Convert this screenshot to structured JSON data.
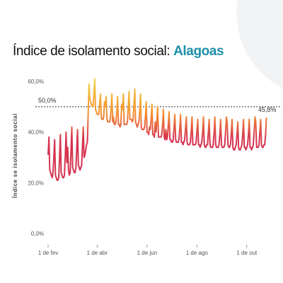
{
  "title": {
    "prefix": "Índice de isolamento social:",
    "location": "Alagoas"
  },
  "colors": {
    "low": "#d6334f",
    "mid": "#f5922f",
    "high": "#f2d44a",
    "reference_line": "#333333",
    "location": "#1e8fa8"
  },
  "chart_data": {
    "type": "line",
    "title": "Índice de isolamento social: Alagoas",
    "ylabel": "Índice se isolamento social",
    "xlabel": "",
    "y_unit": "%",
    "ylim": [
      0,
      60
    ],
    "xlim": [
      "2020-02-01",
      "2020-10-28"
    ],
    "yticks": [
      {
        "value": 0,
        "label": "0,0%"
      },
      {
        "value": 20,
        "label": "20,0%"
      },
      {
        "value": 40,
        "label": "40,0%"
      },
      {
        "value": 60,
        "label": "60,0%"
      }
    ],
    "xticks": [
      {
        "date": "2020-02-01",
        "label": "1 de fev"
      },
      {
        "date": "2020-04-01",
        "label": "1 de abr"
      },
      {
        "date": "2020-06-01",
        "label": "1 de jun"
      },
      {
        "date": "2020-08-01",
        "label": "1 de ago"
      },
      {
        "date": "2020-10-01",
        "label": "1 de out"
      }
    ],
    "reference_line": {
      "value": 50,
      "label": "50,0%"
    },
    "end_label": "45,8%",
    "grid": false,
    "series": [
      {
        "values": [
          [
            "2020-02-01",
            31.0
          ],
          [
            "2020-02-02",
            38.0
          ],
          [
            "2020-02-03",
            25.0
          ],
          [
            "2020-02-04",
            24.0
          ],
          [
            "2020-02-05",
            23.0
          ],
          [
            "2020-02-06",
            22.0
          ],
          [
            "2020-02-07",
            24.0
          ],
          [
            "2020-02-08",
            30.0
          ],
          [
            "2020-02-09",
            37.0
          ],
          [
            "2020-02-10",
            23.0
          ],
          [
            "2020-02-11",
            22.0
          ],
          [
            "2020-02-12",
            21.0
          ],
          [
            "2020-02-13",
            21.0
          ],
          [
            "2020-02-14",
            22.0
          ],
          [
            "2020-02-15",
            30.0
          ],
          [
            "2020-02-16",
            39.0
          ],
          [
            "2020-02-17",
            24.0
          ],
          [
            "2020-02-18",
            23.0
          ],
          [
            "2020-02-19",
            22.0
          ],
          [
            "2020-02-20",
            22.0
          ],
          [
            "2020-02-21",
            23.0
          ],
          [
            "2020-02-22",
            31.0
          ],
          [
            "2020-02-23",
            40.0
          ],
          [
            "2020-02-24",
            28.0
          ],
          [
            "2020-02-25",
            34.0
          ],
          [
            "2020-02-26",
            25.0
          ],
          [
            "2020-02-27",
            23.0
          ],
          [
            "2020-02-28",
            24.0
          ],
          [
            "2020-02-29",
            33.0
          ],
          [
            "2020-03-01",
            42.0
          ],
          [
            "2020-03-02",
            26.0
          ],
          [
            "2020-03-03",
            25.0
          ],
          [
            "2020-03-04",
            24.0
          ],
          [
            "2020-03-05",
            24.0
          ],
          [
            "2020-03-06",
            26.0
          ],
          [
            "2020-03-07",
            33.0
          ],
          [
            "2020-03-08",
            41.0
          ],
          [
            "2020-03-09",
            27.0
          ],
          [
            "2020-03-10",
            26.0
          ],
          [
            "2020-03-11",
            25.0
          ],
          [
            "2020-03-12",
            26.0
          ],
          [
            "2020-03-13",
            27.0
          ],
          [
            "2020-03-14",
            34.0
          ],
          [
            "2020-03-15",
            42.0
          ],
          [
            "2020-03-16",
            30.0
          ],
          [
            "2020-03-17",
            31.0
          ],
          [
            "2020-03-18",
            33.0
          ],
          [
            "2020-03-19",
            35.0
          ],
          [
            "2020-03-20",
            36.0
          ],
          [
            "2020-03-21",
            47.0
          ],
          [
            "2020-03-22",
            59.0
          ],
          [
            "2020-03-23",
            53.0
          ],
          [
            "2020-03-24",
            52.0
          ],
          [
            "2020-03-25",
            51.0
          ],
          [
            "2020-03-26",
            50.0
          ],
          [
            "2020-03-27",
            50.0
          ],
          [
            "2020-03-28",
            55.0
          ],
          [
            "2020-03-29",
            61.0
          ],
          [
            "2020-03-30",
            49.0
          ],
          [
            "2020-03-31",
            48.0
          ],
          [
            "2020-04-01",
            47.0
          ],
          [
            "2020-04-02",
            47.0
          ],
          [
            "2020-04-03",
            47.0
          ],
          [
            "2020-04-04",
            51.0
          ],
          [
            "2020-04-05",
            55.0
          ],
          [
            "2020-04-06",
            46.0
          ],
          [
            "2020-04-07",
            45.0
          ],
          [
            "2020-04-08",
            45.0
          ],
          [
            "2020-04-09",
            46.0
          ],
          [
            "2020-04-10",
            52.0
          ],
          [
            "2020-04-11",
            50.0
          ],
          [
            "2020-04-12",
            54.0
          ],
          [
            "2020-04-13",
            45.0
          ],
          [
            "2020-04-14",
            44.0
          ],
          [
            "2020-04-15",
            44.0
          ],
          [
            "2020-04-16",
            44.0
          ],
          [
            "2020-04-17",
            45.0
          ],
          [
            "2020-04-18",
            49.0
          ],
          [
            "2020-04-19",
            55.0
          ],
          [
            "2020-04-20",
            44.0
          ],
          [
            "2020-04-21",
            46.0
          ],
          [
            "2020-04-22",
            43.0
          ],
          [
            "2020-04-23",
            43.0
          ],
          [
            "2020-04-24",
            44.0
          ],
          [
            "2020-04-25",
            48.0
          ],
          [
            "2020-04-26",
            54.0
          ],
          [
            "2020-04-27",
            43.0
          ],
          [
            "2020-04-28",
            43.0
          ],
          [
            "2020-04-29",
            42.0
          ],
          [
            "2020-04-30",
            43.0
          ],
          [
            "2020-05-01",
            51.0
          ],
          [
            "2020-05-02",
            49.0
          ],
          [
            "2020-05-03",
            55.0
          ],
          [
            "2020-05-04",
            43.0
          ],
          [
            "2020-05-05",
            43.0
          ],
          [
            "2020-05-06",
            43.0
          ],
          [
            "2020-05-07",
            43.0
          ],
          [
            "2020-05-08",
            44.0
          ],
          [
            "2020-05-09",
            50.0
          ],
          [
            "2020-05-10",
            56.0
          ],
          [
            "2020-05-11",
            45.0
          ],
          [
            "2020-05-12",
            45.0
          ],
          [
            "2020-05-13",
            45.0
          ],
          [
            "2020-05-14",
            44.0
          ],
          [
            "2020-05-15",
            45.0
          ],
          [
            "2020-05-16",
            51.0
          ],
          [
            "2020-05-17",
            57.0
          ],
          [
            "2020-05-18",
            44.0
          ],
          [
            "2020-05-19",
            43.0
          ],
          [
            "2020-05-20",
            42.0
          ],
          [
            "2020-05-21",
            43.0
          ],
          [
            "2020-05-22",
            44.0
          ],
          [
            "2020-05-23",
            48.0
          ],
          [
            "2020-05-24",
            55.0
          ],
          [
            "2020-05-25",
            42.0
          ],
          [
            "2020-05-26",
            41.0
          ],
          [
            "2020-05-27",
            41.0
          ],
          [
            "2020-05-28",
            41.0
          ],
          [
            "2020-05-29",
            42.0
          ],
          [
            "2020-05-30",
            46.0
          ],
          [
            "2020-05-31",
            52.0
          ],
          [
            "2020-06-01",
            40.0
          ],
          [
            "2020-06-02",
            40.0
          ],
          [
            "2020-06-03",
            39.0
          ],
          [
            "2020-06-04",
            42.0
          ],
          [
            "2020-06-05",
            41.0
          ],
          [
            "2020-06-06",
            45.0
          ],
          [
            "2020-06-07",
            51.0
          ],
          [
            "2020-06-08",
            39.0
          ],
          [
            "2020-06-09",
            39.0
          ],
          [
            "2020-06-10",
            38.0
          ],
          [
            "2020-06-11",
            44.0
          ],
          [
            "2020-06-12",
            40.0
          ],
          [
            "2020-06-13",
            44.0
          ],
          [
            "2020-06-14",
            50.0
          ],
          [
            "2020-06-15",
            38.0
          ],
          [
            "2020-06-16",
            38.0
          ],
          [
            "2020-06-17",
            38.0
          ],
          [
            "2020-06-18",
            38.0
          ],
          [
            "2020-06-19",
            39.0
          ],
          [
            "2020-06-20",
            43.0
          ],
          [
            "2020-06-21",
            49.0
          ],
          [
            "2020-06-22",
            38.0
          ],
          [
            "2020-06-23",
            37.0
          ],
          [
            "2020-06-24",
            41.0
          ],
          [
            "2020-06-25",
            37.0
          ],
          [
            "2020-06-26",
            38.0
          ],
          [
            "2020-06-27",
            43.0
          ],
          [
            "2020-06-28",
            48.0
          ],
          [
            "2020-06-29",
            37.0
          ],
          [
            "2020-06-30",
            37.0
          ],
          [
            "2020-07-01",
            36.0
          ],
          [
            "2020-07-02",
            36.0
          ],
          [
            "2020-07-03",
            37.0
          ],
          [
            "2020-07-04",
            42.0
          ],
          [
            "2020-07-05",
            47.0
          ],
          [
            "2020-07-06",
            37.0
          ],
          [
            "2020-07-07",
            36.0
          ],
          [
            "2020-07-08",
            36.0
          ],
          [
            "2020-07-09",
            36.0
          ],
          [
            "2020-07-10",
            37.0
          ],
          [
            "2020-07-11",
            41.0
          ],
          [
            "2020-07-12",
            47.0
          ],
          [
            "2020-07-13",
            36.0
          ],
          [
            "2020-07-14",
            36.0
          ],
          [
            "2020-07-15",
            35.0
          ],
          [
            "2020-07-16",
            36.0
          ],
          [
            "2020-07-17",
            37.0
          ],
          [
            "2020-07-18",
            41.0
          ],
          [
            "2020-07-19",
            46.0
          ],
          [
            "2020-07-20",
            36.0
          ],
          [
            "2020-07-21",
            35.0
          ],
          [
            "2020-07-22",
            35.0
          ],
          [
            "2020-07-23",
            35.0
          ],
          [
            "2020-07-24",
            36.0
          ],
          [
            "2020-07-25",
            40.0
          ],
          [
            "2020-07-26",
            46.0
          ],
          [
            "2020-07-27",
            35.0
          ],
          [
            "2020-07-28",
            35.0
          ],
          [
            "2020-07-29",
            35.0
          ],
          [
            "2020-07-30",
            35.0
          ],
          [
            "2020-07-31",
            36.0
          ],
          [
            "2020-08-01",
            40.0
          ],
          [
            "2020-08-02",
            45.0
          ],
          [
            "2020-08-03",
            35.0
          ],
          [
            "2020-08-04",
            35.0
          ],
          [
            "2020-08-05",
            34.0
          ],
          [
            "2020-08-06",
            35.0
          ],
          [
            "2020-08-07",
            36.0
          ],
          [
            "2020-08-08",
            40.0
          ],
          [
            "2020-08-09",
            46.0
          ],
          [
            "2020-08-10",
            35.0
          ],
          [
            "2020-08-11",
            34.0
          ],
          [
            "2020-08-12",
            34.0
          ],
          [
            "2020-08-13",
            35.0
          ],
          [
            "2020-08-14",
            35.0
          ],
          [
            "2020-08-15",
            40.0
          ],
          [
            "2020-08-16",
            45.0
          ],
          [
            "2020-08-17",
            35.0
          ],
          [
            "2020-08-18",
            34.0
          ],
          [
            "2020-08-19",
            34.0
          ],
          [
            "2020-08-20",
            34.0
          ],
          [
            "2020-08-21",
            35.0
          ],
          [
            "2020-08-22",
            40.0
          ],
          [
            "2020-08-23",
            46.0
          ],
          [
            "2020-08-24",
            35.0
          ],
          [
            "2020-08-25",
            34.0
          ],
          [
            "2020-08-26",
            34.0
          ],
          [
            "2020-08-27",
            34.0
          ],
          [
            "2020-08-28",
            35.0
          ],
          [
            "2020-08-29",
            39.0
          ],
          [
            "2020-08-30",
            45.0
          ],
          [
            "2020-08-31",
            35.0
          ],
          [
            "2020-09-01",
            34.0
          ],
          [
            "2020-09-02",
            34.0
          ],
          [
            "2020-09-03",
            34.0
          ],
          [
            "2020-09-04",
            35.0
          ],
          [
            "2020-09-05",
            40.0
          ],
          [
            "2020-09-06",
            46.0
          ],
          [
            "2020-09-07",
            44.0
          ],
          [
            "2020-09-08",
            35.0
          ],
          [
            "2020-09-09",
            34.0
          ],
          [
            "2020-09-10",
            34.0
          ],
          [
            "2020-09-11",
            35.0
          ],
          [
            "2020-09-12",
            39.0
          ],
          [
            "2020-09-13",
            45.0
          ],
          [
            "2020-09-14",
            34.0
          ],
          [
            "2020-09-15",
            33.0
          ],
          [
            "2020-09-16",
            33.0
          ],
          [
            "2020-09-17",
            34.0
          ],
          [
            "2020-09-18",
            35.0
          ],
          [
            "2020-09-19",
            39.0
          ],
          [
            "2020-09-20",
            44.0
          ],
          [
            "2020-09-21",
            34.0
          ],
          [
            "2020-09-22",
            33.0
          ],
          [
            "2020-09-23",
            33.0
          ],
          [
            "2020-09-24",
            34.0
          ],
          [
            "2020-09-25",
            35.0
          ],
          [
            "2020-09-26",
            39.0
          ],
          [
            "2020-09-27",
            45.0
          ],
          [
            "2020-09-28",
            34.0
          ],
          [
            "2020-09-29",
            34.0
          ],
          [
            "2020-09-30",
            33.0
          ],
          [
            "2020-10-01",
            34.0
          ],
          [
            "2020-10-02",
            35.0
          ],
          [
            "2020-10-03",
            39.0
          ],
          [
            "2020-10-04",
            45.0
          ],
          [
            "2020-10-05",
            34.0
          ],
          [
            "2020-10-06",
            34.0
          ],
          [
            "2020-10-07",
            33.0
          ],
          [
            "2020-10-08",
            34.0
          ],
          [
            "2020-10-09",
            35.0
          ],
          [
            "2020-10-10",
            40.0
          ],
          [
            "2020-10-11",
            46.0
          ],
          [
            "2020-10-12",
            44.0
          ],
          [
            "2020-10-13",
            34.0
          ],
          [
            "2020-10-14",
            34.0
          ],
          [
            "2020-10-15",
            34.0
          ],
          [
            "2020-10-16",
            35.0
          ],
          [
            "2020-10-17",
            40.0
          ],
          [
            "2020-10-18",
            45.0
          ],
          [
            "2020-10-19",
            35.0
          ],
          [
            "2020-10-20",
            34.0
          ],
          [
            "2020-10-21",
            34.0
          ],
          [
            "2020-10-22",
            35.0
          ],
          [
            "2020-10-23",
            35.0
          ],
          [
            "2020-10-24",
            39.0
          ],
          [
            "2020-10-25",
            45.8
          ]
        ]
      }
    ]
  }
}
